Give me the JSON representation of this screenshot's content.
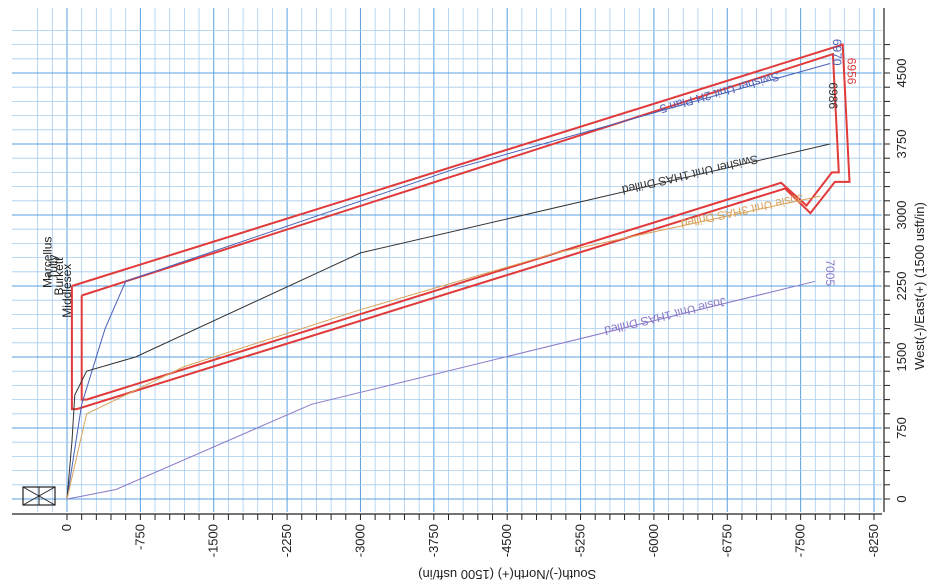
{
  "chart_data": {
    "type": "line",
    "title": "",
    "xlabel": "West(-)/East(+) (1500 usft/in)",
    "ylabel": "South(-)/North(+) (1500 usft/in)",
    "xlim": [
      -300,
      4900
    ],
    "ylim": [
      -8300,
      180
    ],
    "grid": true,
    "x_ticks": [
      0,
      750,
      1500,
      2250,
      3000,
      3750,
      4500
    ],
    "x_tick_labels": [
      "0",
      "750",
      "1500",
      "2250",
      "3000",
      "3750",
      "4500"
    ],
    "y_ticks": [
      0,
      -750,
      -1500,
      -2250,
      -3000,
      -3750,
      -4500,
      -5250,
      -6000,
      -6750,
      -7500,
      -8250
    ],
    "y_tick_labels": [
      "0",
      "-750",
      "-1500",
      "-2250",
      "-3000",
      "-3750",
      "-4500",
      "-5250",
      "-6000",
      "-6750",
      "-7500",
      "-8250"
    ],
    "series": [
      {
        "name": "Swisher Unit 2H Plan 5",
        "color": "#4a5fb5",
        "points": [
          [
            0,
            0
          ],
          [
            400,
            -60
          ],
          [
            1000,
            -150
          ],
          [
            1800,
            -390
          ],
          [
            2300,
            -600
          ],
          [
            3500,
            -4000
          ],
          [
            4600,
            -7800
          ]
        ]
      },
      {
        "name": "Swisher Unit 1HAS Drilled",
        "color": "#333333",
        "points": [
          [
            0,
            0
          ],
          [
            600,
            -50
          ],
          [
            1100,
            -80
          ],
          [
            1350,
            -200
          ],
          [
            1500,
            -700
          ],
          [
            2600,
            -3000
          ],
          [
            3750,
            -7800
          ]
        ]
      },
      {
        "name": "Josie Unit 3HAS Drilled",
        "color": "#d9a35a",
        "points": [
          [
            0,
            0
          ],
          [
            900,
            -200
          ],
          [
            1400,
            -1200
          ],
          [
            2000,
            -3000
          ],
          [
            2600,
            -5000
          ],
          [
            3200,
            -7700
          ]
        ]
      },
      {
        "name": "Josie Unit 1HAS Drilled",
        "color": "#8a7ac8",
        "points": [
          [
            0,
            0
          ],
          [
            30,
            -150
          ],
          [
            100,
            -500
          ],
          [
            1000,
            -2500
          ],
          [
            2300,
            -7650
          ]
        ]
      }
    ],
    "boundaries": [
      {
        "name": "outer",
        "color": "#e03a3a",
        "points": [
          [
            2250,
            -50
          ],
          [
            4800,
            -7930
          ],
          [
            3350,
            -8000
          ],
          [
            3350,
            -7850
          ],
          [
            3020,
            -7600
          ],
          [
            3280,
            -7340
          ],
          [
            950,
            -100
          ],
          [
            950,
            -50
          ],
          [
            2250,
            -50
          ]
        ]
      },
      {
        "name": "inner",
        "color": "#e03a3a",
        "points": [
          [
            2150,
            -150
          ],
          [
            4700,
            -7830
          ],
          [
            3450,
            -7890
          ],
          [
            3450,
            -7820
          ],
          [
            3100,
            -7560
          ],
          [
            3340,
            -7300
          ],
          [
            1050,
            -200
          ],
          [
            1050,
            -150
          ],
          [
            2150,
            -150
          ]
        ]
      }
    ],
    "depth_labels": [
      {
        "text": "6970",
        "x": 4720,
        "y": -7830,
        "color": "#4a5fb5"
      },
      {
        "text": "6956",
        "x": 4520,
        "y": -7980,
        "color": "#e03a3a"
      },
      {
        "text": "6986",
        "x": 4260,
        "y": -7790,
        "color": "#333333"
      },
      {
        "text": "7005",
        "x": 2390,
        "y": -7760,
        "color": "#8a7ac8"
      }
    ],
    "formation_labels": [
      {
        "text": "Middlesex",
        "x": 2200,
        "y": -40
      },
      {
        "text": "Burkett",
        "x": 2350,
        "y": 40
      },
      {
        "text": "Tully",
        "x": 2450,
        "y": 100
      },
      {
        "text": "Marcellus",
        "x": 2500,
        "y": 160
      }
    ]
  }
}
